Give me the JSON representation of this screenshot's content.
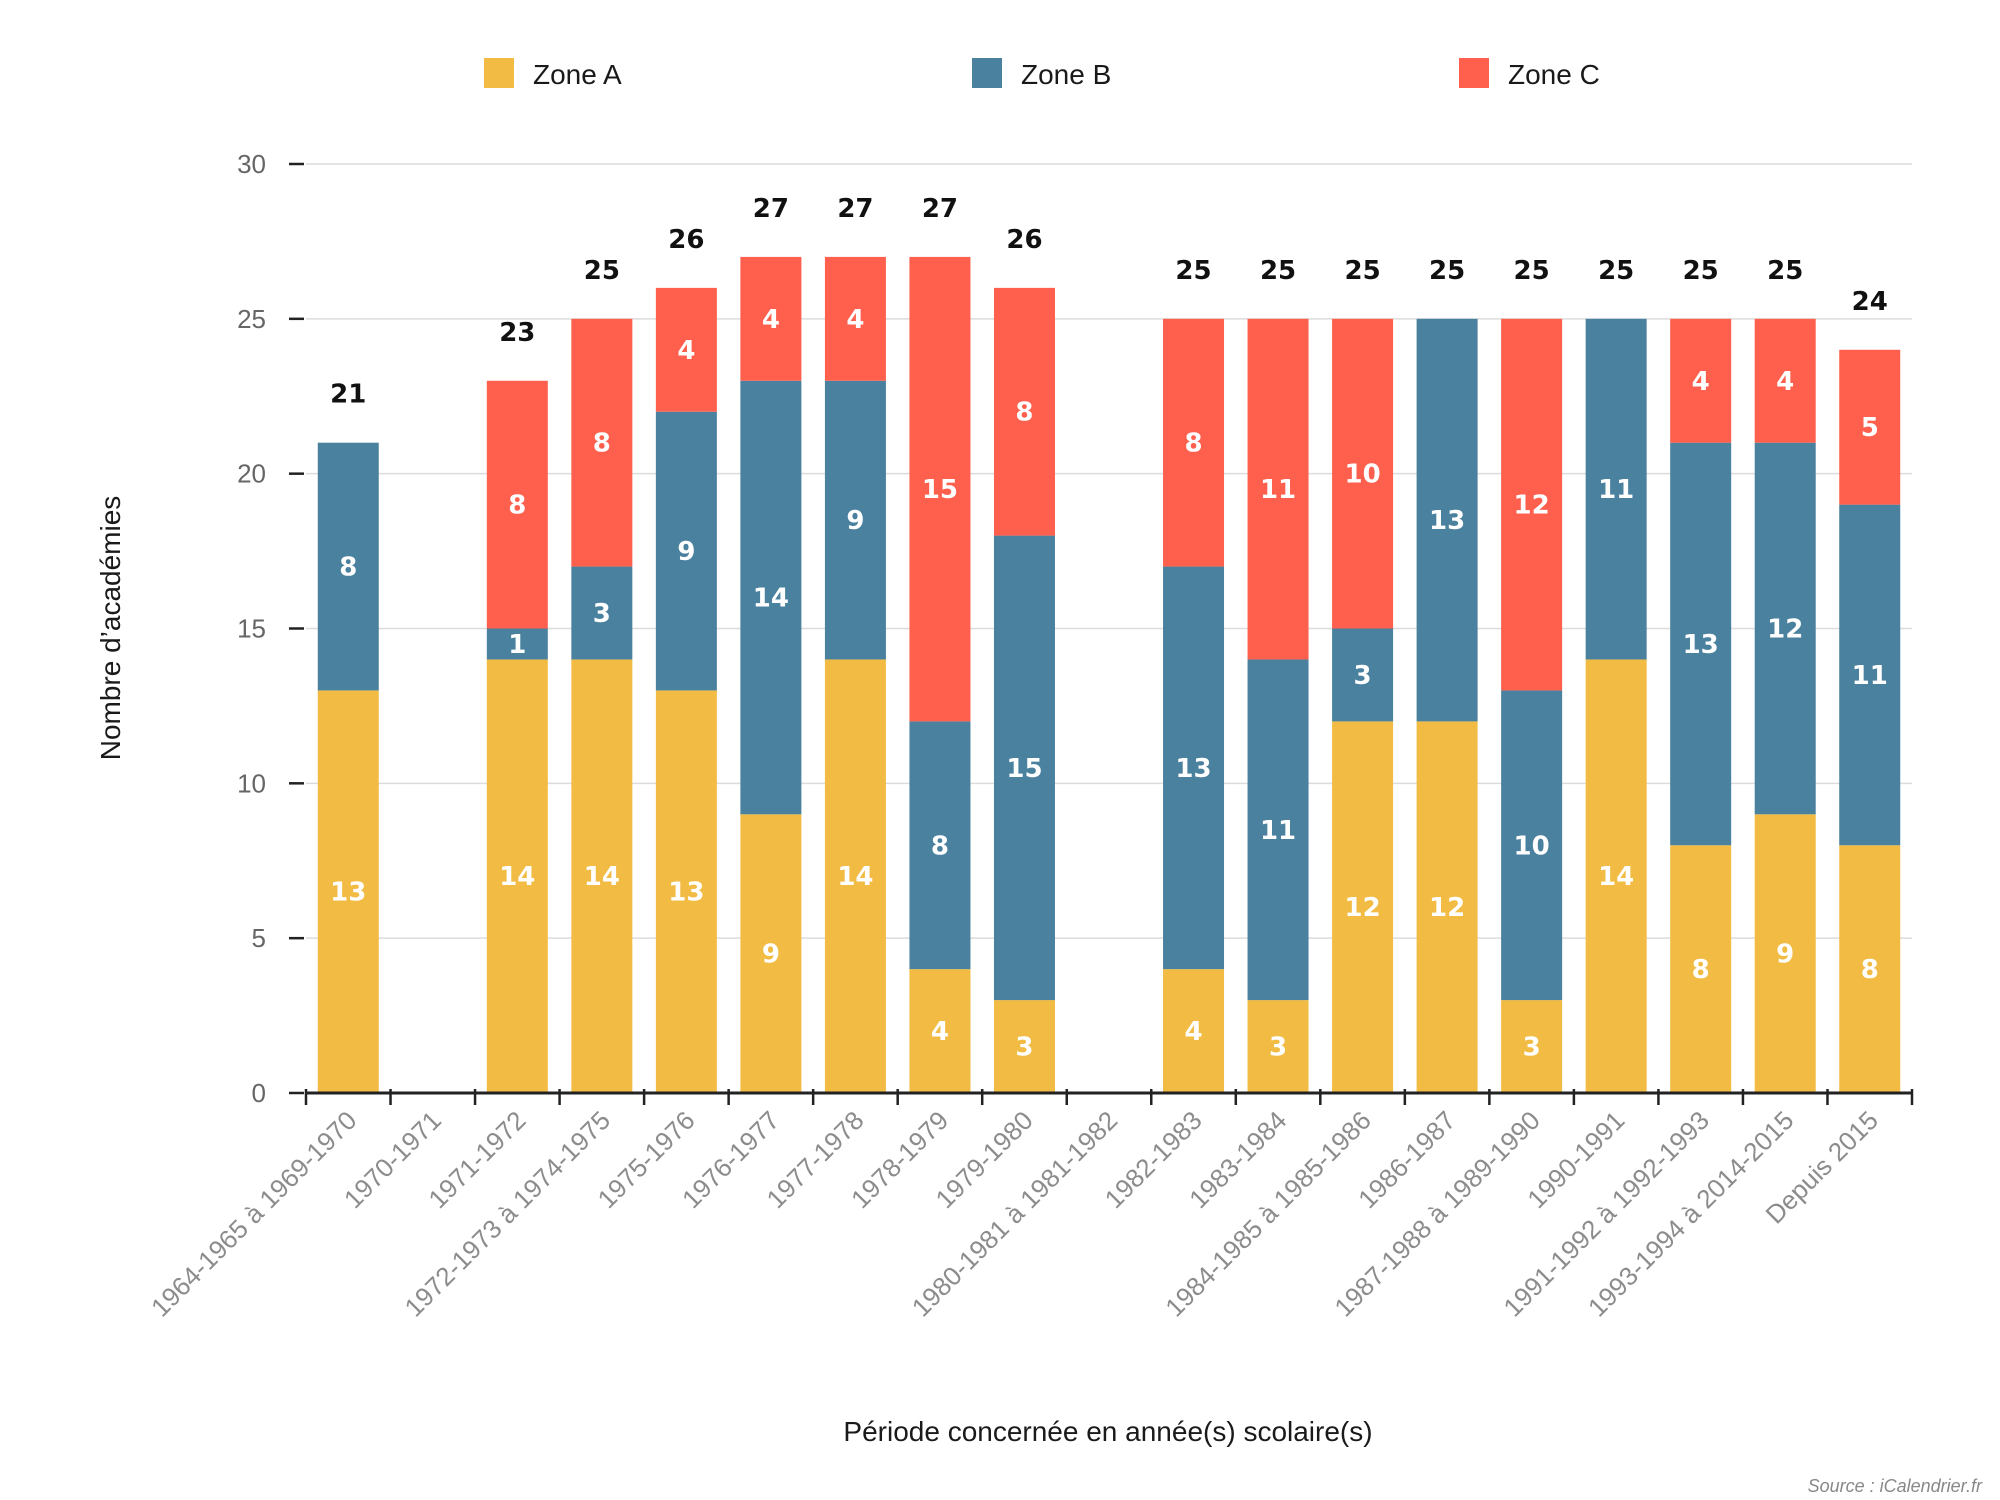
{
  "chart_data": {
    "type": "bar",
    "stacked": true,
    "title": "",
    "xlabel": "Période concernée en année(s) scolaire(s)",
    "ylabel": "Nombre d’académies",
    "ylim": [
      0,
      30
    ],
    "yticks": [
      0,
      5,
      10,
      15,
      20,
      25,
      30
    ],
    "grid": true,
    "legend_position": "top",
    "categories": [
      "1964-1965 à 1969-1970",
      "1970-1971",
      "1971-1972",
      "1972-1973 à 1974-1975",
      "1975-1976",
      "1976-1977",
      "1977-1978",
      "1978-1979",
      "1979-1980",
      "1980-1981 à 1981-1982",
      "1982-1983",
      "1983-1984",
      "1984-1985 à 1985-1986",
      "1986-1987",
      "1987-1988 à 1989-1990",
      "1990-1991",
      "1991-1992 à 1992-1993",
      "1993-1994 à 2014-2015",
      "Depuis 2015"
    ],
    "series": [
      {
        "name": "Zone A",
        "color": "#f2bb43",
        "values": [
          13,
          null,
          14,
          14,
          13,
          9,
          14,
          4,
          3,
          null,
          4,
          3,
          12,
          12,
          3,
          14,
          8,
          9,
          8
        ]
      },
      {
        "name": "Zone B",
        "color": "#4a819e",
        "values": [
          8,
          null,
          1,
          3,
          9,
          14,
          9,
          8,
          15,
          null,
          13,
          11,
          3,
          13,
          10,
          11,
          13,
          12,
          11
        ]
      },
      {
        "name": "Zone C",
        "color": "#fe604d",
        "values": [
          null,
          null,
          8,
          8,
          4,
          4,
          4,
          15,
          8,
          null,
          8,
          11,
          10,
          null,
          12,
          null,
          4,
          4,
          5
        ]
      }
    ],
    "totals": [
      21,
      null,
      23,
      25,
      26,
      27,
      27,
      27,
      26,
      null,
      25,
      25,
      25,
      25,
      25,
      25,
      25,
      25,
      24
    ]
  },
  "source": "Source : iCalendrier.fr"
}
